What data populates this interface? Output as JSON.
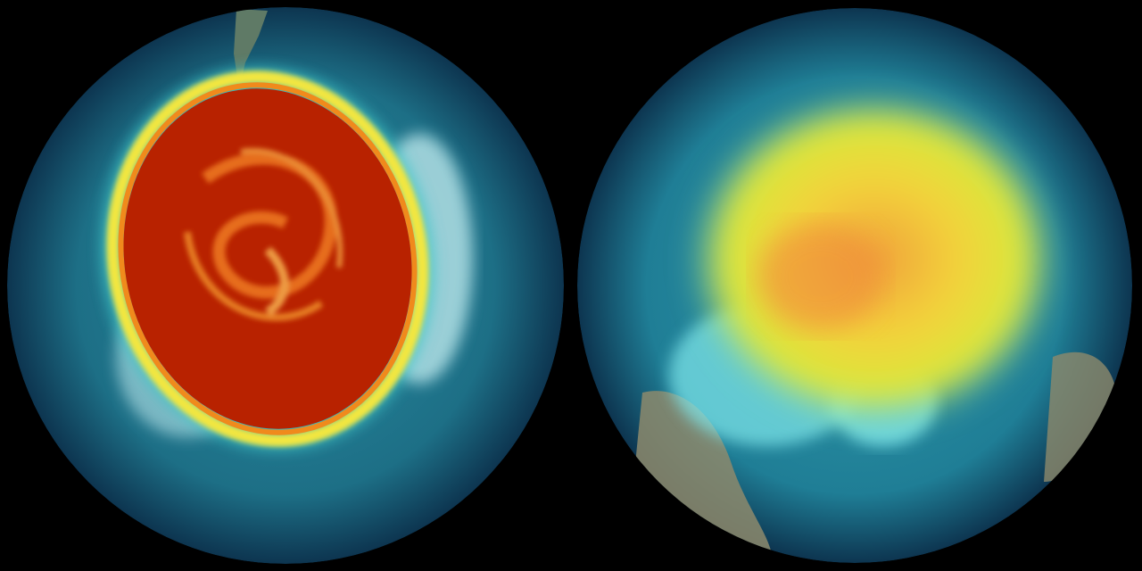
{
  "scene": {
    "background": "#000000",
    "globes": [
      {
        "name": "left-globe",
        "ocean_color": "#1d6f86",
        "rim_color": "#0e3f5a",
        "band_colors": [
          "#3fc7c8",
          "#f2e640",
          "#f08a1c"
        ],
        "core_color": "#b82200",
        "swirl_color": "#ef7a22",
        "ice_color": "#b9e6ea"
      },
      {
        "name": "right-globe",
        "ocean_color": "#1f7e96",
        "rim_color": "#0e3f5a",
        "band_colors": [
          "#3fc7c8",
          "#e8ee3a"
        ],
        "core_color": "#f1a43a",
        "ice_color": "#7fe8ec",
        "land_color": "#8d8a6c"
      }
    ]
  }
}
